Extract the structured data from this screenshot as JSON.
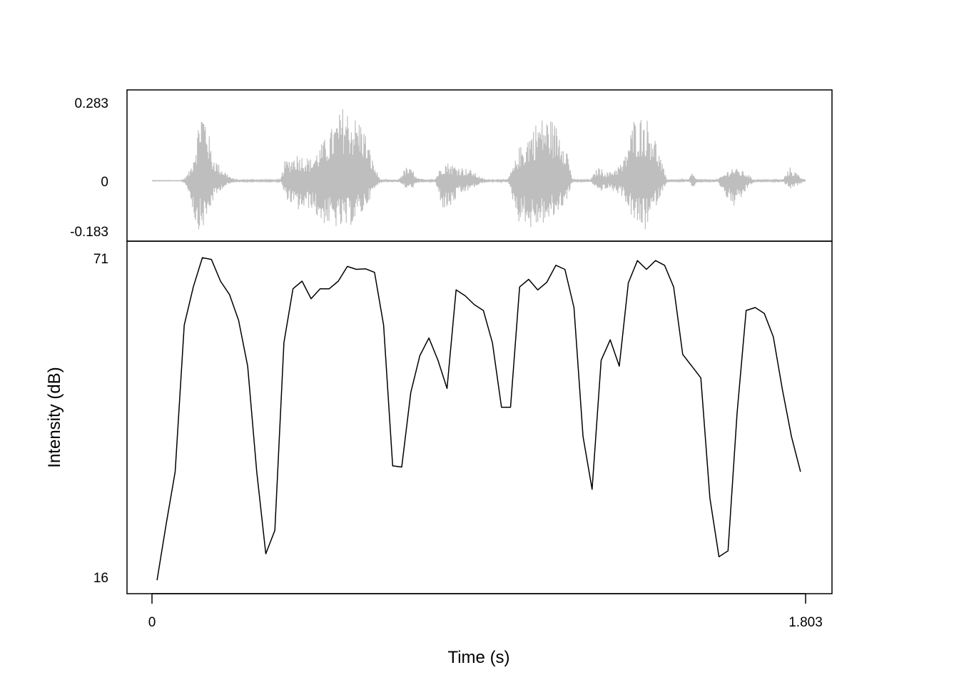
{
  "chart_data": [
    {
      "type": "line",
      "panel": "waveform",
      "ylim": [
        -0.183,
        0.283
      ],
      "y_ticks": [
        "0.283",
        "0",
        "-0.183"
      ],
      "xlim": [
        0,
        1.803
      ],
      "color": "#bebebe",
      "grid": false,
      "envelope": {
        "t": [
          0.0,
          0.08,
          0.09,
          0.105,
          0.12,
          0.135,
          0.15,
          0.165,
          0.19,
          0.22,
          0.25,
          0.28,
          0.31,
          0.355,
          0.365,
          0.4,
          0.44,
          0.46,
          0.5,
          0.53,
          0.55,
          0.58,
          0.61,
          0.63,
          0.64,
          0.68,
          0.7,
          0.72,
          0.73,
          0.76,
          0.78,
          0.8,
          0.81,
          0.83,
          0.84,
          0.88,
          0.91,
          0.93,
          0.95,
          0.98,
          1.0,
          1.01,
          1.03,
          1.04,
          1.07,
          1.1,
          1.14,
          1.16,
          1.17,
          1.18,
          1.21,
          1.23,
          1.26,
          1.3,
          1.33,
          1.36,
          1.38,
          1.4,
          1.42,
          1.45,
          1.48,
          1.49,
          1.5,
          1.51,
          1.54,
          1.56,
          1.6,
          1.62,
          1.64,
          1.66,
          1.69,
          1.72,
          1.74,
          1.76,
          1.803
        ],
        "upper": [
          0.001,
          0.001,
          0.01,
          0.04,
          0.14,
          0.28,
          0.24,
          0.1,
          0.05,
          0.01,
          0.003,
          0.003,
          0.003,
          0.003,
          0.07,
          0.1,
          0.08,
          0.12,
          0.2,
          0.28,
          0.24,
          0.22,
          0.07,
          0.003,
          0.003,
          0.005,
          0.05,
          0.04,
          0.01,
          0.003,
          0.005,
          0.06,
          0.07,
          0.06,
          0.055,
          0.04,
          0.01,
          0.003,
          0.003,
          0.005,
          0.06,
          0.12,
          0.14,
          0.18,
          0.23,
          0.23,
          0.16,
          0.003,
          0.003,
          0.003,
          0.005,
          0.05,
          0.03,
          0.07,
          0.23,
          0.24,
          0.2,
          0.1,
          0.003,
          0.003,
          0.005,
          0.03,
          0.01,
          0.003,
          0.003,
          0.005,
          0.05,
          0.04,
          0.03,
          0.003,
          0.003,
          0.003,
          0.005,
          0.05,
          0.001
        ],
        "lower": [
          -0.001,
          -0.001,
          -0.01,
          -0.06,
          -0.17,
          -0.183,
          -0.15,
          -0.08,
          -0.03,
          -0.008,
          -0.003,
          -0.003,
          -0.003,
          -0.003,
          -0.06,
          -0.11,
          -0.1,
          -0.15,
          -0.17,
          -0.183,
          -0.16,
          -0.12,
          -0.04,
          -0.003,
          -0.003,
          -0.005,
          -0.03,
          -0.025,
          -0.01,
          -0.003,
          -0.005,
          -0.1,
          -0.11,
          -0.09,
          -0.06,
          -0.03,
          -0.01,
          -0.003,
          -0.003,
          -0.005,
          -0.1,
          -0.15,
          -0.15,
          -0.18,
          -0.16,
          -0.15,
          -0.08,
          -0.003,
          -0.003,
          -0.003,
          -0.005,
          -0.04,
          -0.03,
          -0.06,
          -0.16,
          -0.183,
          -0.12,
          -0.06,
          -0.003,
          -0.003,
          -0.005,
          -0.03,
          -0.01,
          -0.003,
          -0.003,
          -0.005,
          -0.1,
          -0.08,
          -0.03,
          -0.003,
          -0.003,
          -0.003,
          -0.005,
          -0.03,
          -0.001
        ]
      }
    },
    {
      "type": "line",
      "panel": "intensity",
      "ylabel": "Intensity (dB)",
      "xlabel": "Time (s)",
      "ylim": [
        16,
        71
      ],
      "xlim": [
        0,
        1.803
      ],
      "y_ticks": [
        "71",
        "16"
      ],
      "x_ticks": [
        "0",
        "1.803"
      ],
      "color": "#000000",
      "grid": false,
      "x": [
        0.014,
        0.039,
        0.064,
        0.089,
        0.114,
        0.139,
        0.164,
        0.189,
        0.214,
        0.239,
        0.264,
        0.289,
        0.314,
        0.339,
        0.364,
        0.389,
        0.414,
        0.439,
        0.464,
        0.489,
        0.514,
        0.539,
        0.564,
        0.589,
        0.614,
        0.639,
        0.664,
        0.689,
        0.714,
        0.739,
        0.764,
        0.789,
        0.814,
        0.839,
        0.864,
        0.889,
        0.914,
        0.939,
        0.964,
        0.989,
        1.014,
        1.039,
        1.064,
        1.089,
        1.114,
        1.139,
        1.164,
        1.189,
        1.214,
        1.239,
        1.264,
        1.289,
        1.314,
        1.339,
        1.364,
        1.389,
        1.414,
        1.439,
        1.464,
        1.489,
        1.514,
        1.539,
        1.564,
        1.589,
        1.614,
        1.639,
        1.664,
        1.689,
        1.714,
        1.739,
        1.764,
        1.789
      ],
      "y": [
        15.5,
        25.0,
        34.0,
        59.0,
        65.5,
        70.5,
        70.2,
        66.5,
        64.2,
        59.8,
        52.0,
        34.0,
        20.0,
        24.0,
        56.0,
        65.2,
        66.5,
        63.5,
        65.2,
        65.2,
        66.5,
        69.0,
        68.5,
        68.6,
        68.0,
        59.0,
        35.0,
        34.8,
        47.5,
        53.8,
        56.8,
        53.0,
        48.2,
        65.0,
        64.0,
        62.5,
        61.5,
        56.0,
        45.0,
        45.0,
        65.5,
        66.8,
        65.0,
        66.3,
        69.2,
        68.5,
        62.0,
        40.0,
        31.0,
        53.0,
        56.5,
        52.0,
        66.2,
        70.0,
        68.5,
        70.0,
        69.2,
        65.5,
        54.0,
        52.0,
        50.0,
        29.5,
        19.5,
        20.5,
        44.0,
        61.5,
        62.0,
        61.0,
        57.0,
        48.0,
        40.0,
        34.0
      ]
    }
  ]
}
